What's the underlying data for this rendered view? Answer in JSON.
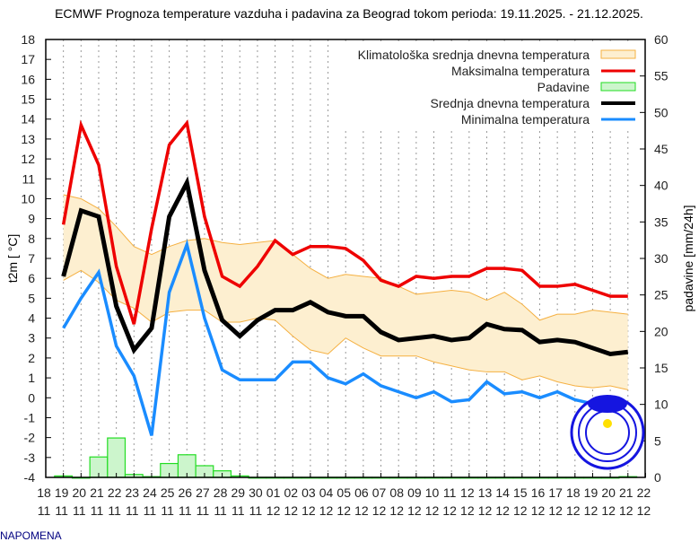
{
  "chart_data": {
    "type": "line",
    "title": "ECMWF Prognoza temperature vazduha i padavina za Beograd tokom perioda: 19.11.2025. - 21.12.2025.",
    "ylabel": "t2m [ °C]",
    "y2label": "padavine [mm/24h]",
    "ylim": [
      -4,
      18
    ],
    "y2lim": [
      0,
      60
    ],
    "grid": "vertical dotted",
    "legend_position": "top-right",
    "x_ticks": [
      [
        "18",
        "11"
      ],
      [
        "19",
        "11"
      ],
      [
        "20",
        "11"
      ],
      [
        "21",
        "11"
      ],
      [
        "22",
        "11"
      ],
      [
        "23",
        "11"
      ],
      [
        "24",
        "11"
      ],
      [
        "25",
        "11"
      ],
      [
        "26",
        "11"
      ],
      [
        "27",
        "11"
      ],
      [
        "28",
        "11"
      ],
      [
        "29",
        "11"
      ],
      [
        "30",
        "11"
      ],
      [
        "01",
        "12"
      ],
      [
        "02",
        "12"
      ],
      [
        "03",
        "12"
      ],
      [
        "04",
        "12"
      ],
      [
        "05",
        "12"
      ],
      [
        "06",
        "12"
      ],
      [
        "07",
        "12"
      ],
      [
        "08",
        "12"
      ],
      [
        "09",
        "12"
      ],
      [
        "10",
        "12"
      ],
      [
        "11",
        "12"
      ],
      [
        "12",
        "12"
      ],
      [
        "13",
        "12"
      ],
      [
        "14",
        "12"
      ],
      [
        "15",
        "12"
      ],
      [
        "16",
        "12"
      ],
      [
        "17",
        "12"
      ],
      [
        "18",
        "12"
      ],
      [
        "19",
        "12"
      ],
      [
        "20",
        "12"
      ],
      [
        "21",
        "12"
      ],
      [
        "22",
        "12"
      ]
    ],
    "y_ticks": [
      -4,
      -3,
      -2,
      -1,
      0,
      1,
      2,
      3,
      4,
      5,
      6,
      7,
      8,
      9,
      10,
      11,
      12,
      13,
      14,
      15,
      16,
      17,
      18
    ],
    "y2_ticks": [
      0,
      5,
      10,
      15,
      20,
      25,
      30,
      35,
      40,
      45,
      50,
      55,
      60
    ],
    "x": [
      "19.11",
      "20.11",
      "21.11",
      "22.11",
      "23.11",
      "24.11",
      "25.11",
      "26.11",
      "27.11",
      "28.11",
      "29.11",
      "30.11",
      "01.12",
      "02.12",
      "03.12",
      "04.12",
      "05.12",
      "06.12",
      "07.12",
      "08.12",
      "09.12",
      "10.12",
      "11.12",
      "12.12",
      "13.12",
      "14.12",
      "15.12",
      "16.12",
      "17.12",
      "18.12",
      "19.12",
      "20.12",
      "21.12"
    ],
    "climate_band": {
      "name": "Klimatološka srednja dnevna temperatura",
      "color": "#f5b041",
      "fill": "#fdefd0",
      "upper": [
        10.2,
        10.0,
        9.5,
        8.6,
        7.6,
        7.2,
        7.6,
        7.9,
        8.0,
        7.8,
        7.7,
        7.8,
        7.9,
        7.2,
        6.5,
        6.0,
        6.2,
        6.1,
        6.0,
        5.6,
        5.2,
        5.3,
        5.4,
        5.3,
        4.9,
        5.3,
        4.7,
        3.9,
        4.2,
        4.2,
        4.4,
        4.3,
        4.2
      ],
      "lower": [
        5.9,
        6.4,
        5.8,
        4.9,
        4.5,
        3.8,
        4.3,
        4.4,
        4.4,
        3.8,
        3.8,
        4.0,
        3.9,
        3.1,
        2.4,
        2.2,
        3.0,
        2.5,
        2.1,
        2.1,
        2.1,
        1.8,
        1.6,
        1.4,
        1.3,
        1.3,
        0.9,
        1.1,
        0.8,
        0.6,
        0.5,
        0.6,
        0.4
      ]
    },
    "series": [
      {
        "name": "Maksimalna temperatura",
        "color": "#ee0000",
        "values": [
          8.7,
          13.7,
          11.7,
          6.6,
          3.7,
          8.5,
          12.7,
          13.8,
          9.1,
          6.1,
          5.6,
          6.6,
          7.9,
          7.2,
          7.6,
          7.6,
          7.5,
          6.9,
          5.9,
          5.6,
          6.1,
          6.0,
          6.1,
          6.1,
          6.5,
          6.5,
          6.4,
          5.6,
          5.6,
          5.7,
          5.4,
          5.1,
          5.1
        ]
      },
      {
        "name": "Srednja dnevna temperatura",
        "color": "#000000",
        "values": [
          6.1,
          9.4,
          9.1,
          4.6,
          2.4,
          3.5,
          9.1,
          10.8,
          6.4,
          3.9,
          3.1,
          3.9,
          4.4,
          4.4,
          4.8,
          4.3,
          4.1,
          4.1,
          3.3,
          2.9,
          3.0,
          3.1,
          2.9,
          3.0,
          3.7,
          3.45,
          3.4,
          2.8,
          2.9,
          2.8,
          2.5,
          2.2,
          2.3
        ]
      },
      {
        "name": "Minimalna temperatura",
        "color": "#1a8cff",
        "values": [
          3.5,
          5.0,
          6.3,
          2.6,
          1.1,
          -1.9,
          5.3,
          7.7,
          4.0,
          1.4,
          0.9,
          0.9,
          0.9,
          1.8,
          1.8,
          1.0,
          0.7,
          1.2,
          0.6,
          0.3,
          0.0,
          0.3,
          -0.2,
          -0.1,
          0.8,
          0.2,
          0.3,
          0.0,
          0.3,
          -0.1,
          -0.3,
          -0.4,
          -0.4
        ]
      }
    ],
    "precipitation": {
      "name": "Padavine",
      "color": "#22dd22",
      "fill": "#ccf5cc",
      "values": [
        0.2,
        0.0,
        2.8,
        5.4,
        0.4,
        0.1,
        1.9,
        3.1,
        1.6,
        0.9,
        0.2,
        0,
        0,
        0,
        0,
        0,
        0,
        0,
        0,
        0,
        0,
        0,
        0,
        0,
        0,
        0,
        0,
        0,
        0,
        0,
        0,
        0,
        0.1
      ]
    }
  },
  "footer_note": "NAPOMENA"
}
